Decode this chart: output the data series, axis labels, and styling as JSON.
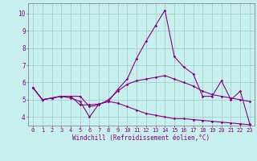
{
  "xlabel": "Windchill (Refroidissement éolien,°C)",
  "background_color": "#c8f0ee",
  "grid_color": "#aad4d0",
  "line_color": "#880088",
  "x_hours": [
    0,
    1,
    2,
    3,
    4,
    5,
    6,
    7,
    8,
    9,
    10,
    11,
    12,
    13,
    14,
    15,
    16,
    17,
    18,
    19,
    20,
    21,
    22,
    23
  ],
  "series1": [
    5.7,
    5.0,
    5.1,
    5.2,
    5.2,
    4.7,
    4.7,
    4.75,
    4.9,
    5.6,
    6.2,
    7.4,
    8.4,
    9.3,
    10.2,
    7.5,
    6.9,
    6.5,
    5.2,
    5.2,
    6.1,
    5.0,
    5.5,
    3.6
  ],
  "series2": [
    5.7,
    5.0,
    5.1,
    5.2,
    5.2,
    5.2,
    4.6,
    4.7,
    5.0,
    5.5,
    5.9,
    6.1,
    6.2,
    6.3,
    6.4,
    6.2,
    6.0,
    5.8,
    5.5,
    5.3,
    5.2,
    5.1,
    5.0,
    4.9
  ],
  "series3": [
    5.7,
    5.0,
    5.1,
    5.2,
    5.1,
    4.9,
    4.0,
    4.75,
    4.9,
    4.8,
    4.6,
    4.4,
    4.2,
    4.1,
    4.0,
    3.9,
    3.9,
    3.85,
    3.8,
    3.75,
    3.7,
    3.65,
    3.6,
    3.55
  ],
  "ylim": [
    3.5,
    10.6
  ],
  "yticks": [
    4,
    5,
    6,
    7,
    8,
    9,
    10
  ],
  "xlim": [
    -0.5,
    23.5
  ],
  "tick_fontsize": 5.0,
  "xlabel_fontsize": 5.5
}
